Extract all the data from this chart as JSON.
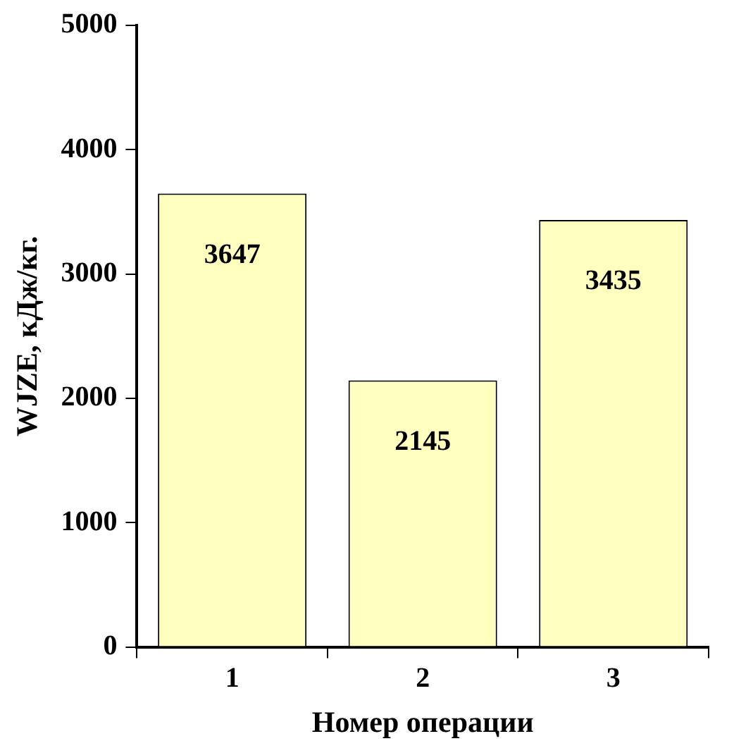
{
  "chart_data": {
    "type": "bar",
    "xlabel": "Номер операции",
    "ylabel": "WJZE, кДж/кг.",
    "categories": [
      "1",
      "2",
      "3"
    ],
    "values": [
      3647,
      2145,
      3435
    ],
    "color": "#ffffc0",
    "ylim": [
      0,
      5000
    ],
    "yticks": [
      0,
      1000,
      2000,
      3000,
      4000,
      5000
    ],
    "data_labels": true
  }
}
